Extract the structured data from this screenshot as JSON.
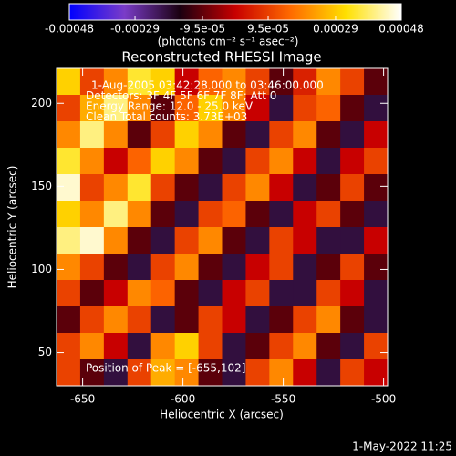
{
  "chart_data": {
    "type": "heatmap",
    "title": "Reconstructed RHESSI Image",
    "x_label": "Heliocentric X (arcsec)",
    "y_label": "Heliocentric Y (arcsec)",
    "colorbar_label": "(photons cm⁻² s⁻¹ asec⁻²)",
    "annotations": [
      "1-Aug-2005 03:42:28.000 to 03:46:00.000",
      "Detectors: 3F 4F 5F 6F 7F 8F; Att 0",
      "Energy Range: 12.0 - 25.0 keV",
      "Clean    Total counts: 3.73E+03"
    ],
    "peak_label": "Position of Peak = [-655,102]",
    "footer": "1-May-2022 11:25",
    "xlim": [
      -663,
      -498
    ],
    "xticks": [
      -650,
      -600,
      -550,
      -500
    ],
    "ylim": [
      30,
      221
    ],
    "yticks": [
      50,
      100,
      150,
      200
    ],
    "clim": [
      -0.00048,
      0.00048
    ],
    "cticks": [
      -0.00048,
      -0.00029,
      {
        "value": -9.5e-05,
        "label": "-9.5e-05"
      },
      {
        "value": 9.5e-05,
        "label": "9.5e-05"
      },
      0.00029,
      0.00048
    ],
    "colormap": [
      "#0000ff",
      "#7a3cc8",
      "#1a0010",
      "#c80000",
      "#ff6a00",
      "#ffe000",
      "#ffffff"
    ],
    "z": [
      [
        0.0003,
        0.0001,
        0.0002,
        0.00035,
        0.0003,
        0.0,
        0.00015,
        0.0002,
        0.0001,
        -0.0001,
        5e-05,
        0.0002,
        0.0001,
        -0.0001
      ],
      [
        0.0001,
        0.00025,
        0.0004,
        0.0002,
        -0.0001,
        0.00015,
        0.0003,
        0.0002,
        0.0,
        -0.0002,
        0.0001,
        0.00015,
        -0.0001,
        -0.0002
      ],
      [
        0.0002,
        0.0004,
        0.0002,
        -0.0001,
        0.0001,
        0.0003,
        0.0002,
        -0.0001,
        -0.0002,
        0.0001,
        0.0002,
        -0.0001,
        -0.0002,
        0.0
      ],
      [
        0.00035,
        0.0002,
        0.0,
        0.00015,
        0.0003,
        0.0002,
        -0.0001,
        -0.0002,
        0.0001,
        0.0002,
        0.0,
        -0.0002,
        0.0,
        0.0001
      ],
      [
        0.00045,
        0.0001,
        0.0002,
        0.00035,
        0.0001,
        -0.0001,
        -0.0002,
        0.0001,
        0.0002,
        0.0,
        -0.0002,
        -0.0001,
        0.0001,
        -0.0001
      ],
      [
        0.0003,
        0.0002,
        0.0004,
        0.0002,
        -0.0001,
        -0.0002,
        0.0001,
        0.00015,
        -0.0001,
        -0.0002,
        0.0,
        0.0001,
        -0.0001,
        -0.0002
      ],
      [
        0.0004,
        0.00045,
        0.0002,
        -0.0001,
        -0.0002,
        0.0001,
        0.0002,
        -0.0001,
        -0.0002,
        0.0001,
        0.0,
        -0.0002,
        -0.0002,
        0.0
      ],
      [
        0.0002,
        0.0001,
        -0.0001,
        -0.0002,
        0.0001,
        0.0002,
        -0.0001,
        -0.0002,
        0.0,
        0.0001,
        -0.0002,
        -0.0001,
        0.0001,
        -0.0001
      ],
      [
        0.0001,
        -0.0001,
        0.0,
        0.0002,
        0.00015,
        -0.0001,
        -0.0002,
        0.0,
        0.0001,
        -0.0002,
        -0.0002,
        0.0001,
        0.0,
        -0.0002
      ],
      [
        -0.0001,
        0.0001,
        0.0002,
        0.0001,
        -0.0002,
        -0.0001,
        0.0001,
        0.0,
        -0.0002,
        -0.0001,
        0.0001,
        0.0002,
        -0.0001,
        -0.0002
      ],
      [
        0.0001,
        0.0002,
        0.0,
        -0.0002,
        0.0002,
        0.0003,
        0.0001,
        -0.0002,
        -0.0001,
        0.0001,
        0.0002,
        -0.0001,
        -0.0002,
        0.0001
      ],
      [
        0.0001,
        -0.0001,
        -0.0002,
        0.0001,
        0.00025,
        0.0002,
        -0.0001,
        -0.0002,
        0.0001,
        0.0002,
        0.0,
        -0.0002,
        0.0001,
        0.0
      ]
    ]
  }
}
